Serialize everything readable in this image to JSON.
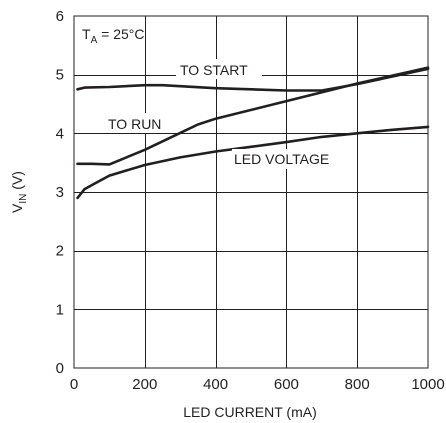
{
  "chart_data": {
    "type": "line",
    "xlabel": "LED CURRENT (mA)",
    "ylabel": {
      "main": "V",
      "sub": "IN",
      "unit": " (V)"
    },
    "xlim": [
      0,
      1000
    ],
    "ylim": [
      0,
      6
    ],
    "x_ticks": [
      0,
      200,
      400,
      600,
      800,
      1000
    ],
    "y_ticks": [
      0,
      1,
      2,
      3,
      4,
      5,
      6
    ],
    "grid": true,
    "condition": {
      "main": "T",
      "sub": "A",
      "rest": " = 25°C"
    },
    "series": [
      {
        "name": "TO START",
        "x": [
          10,
          30,
          100,
          200,
          250,
          400,
          600,
          700,
          800,
          1000
        ],
        "y": [
          4.75,
          4.78,
          4.79,
          4.82,
          4.82,
          4.77,
          4.73,
          4.73,
          4.84,
          5.1
        ]
      },
      {
        "name": "TO RUN",
        "x": [
          10,
          50,
          100,
          200,
          350,
          400,
          600,
          800,
          1000
        ],
        "y": [
          3.48,
          3.48,
          3.47,
          3.72,
          4.15,
          4.25,
          4.55,
          4.85,
          5.12
        ]
      },
      {
        "name": "LED VOLTAGE",
        "x": [
          10,
          30,
          60,
          100,
          200,
          300,
          400,
          500,
          600,
          700,
          800,
          900,
          1000
        ],
        "y": [
          2.9,
          3.05,
          3.15,
          3.28,
          3.46,
          3.59,
          3.69,
          3.77,
          3.85,
          3.94,
          4.0,
          4.06,
          4.11
        ]
      }
    ]
  }
}
